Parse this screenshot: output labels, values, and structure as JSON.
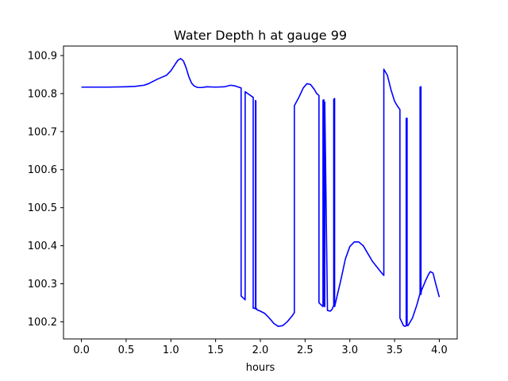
{
  "chart_data": {
    "type": "line",
    "title": "Water Depth h at gauge 99",
    "xlabel": "hours",
    "ylabel": "",
    "xlim": [
      -0.2,
      4.2
    ],
    "ylim": [
      100.155,
      100.925
    ],
    "x_ticks": [
      0.0,
      0.5,
      1.0,
      1.5,
      2.0,
      2.5,
      3.0,
      3.5,
      4.0
    ],
    "x_tick_labels": [
      "0.0",
      "0.5",
      "1.0",
      "1.5",
      "2.0",
      "2.5",
      "3.0",
      "3.5",
      "4.0"
    ],
    "y_ticks": [
      100.2,
      100.3,
      100.4,
      100.5,
      100.6,
      100.7,
      100.8,
      100.9
    ],
    "y_tick_labels": [
      "100.2",
      "100.3",
      "100.4",
      "100.5",
      "100.6",
      "100.7",
      "100.8",
      "100.9"
    ],
    "grid": false,
    "series": [
      {
        "color": "#0000ff",
        "x": [
          0.0,
          0.3,
          0.5,
          0.6,
          0.7,
          0.75,
          0.8,
          0.85,
          0.9,
          0.95,
          1.0,
          1.05,
          1.08,
          1.11,
          1.14,
          1.17,
          1.2,
          1.23,
          1.26,
          1.3,
          1.35,
          1.4,
          1.5,
          1.6,
          1.67,
          1.72,
          1.77,
          1.785,
          1.785,
          1.83,
          1.83,
          1.92,
          1.92,
          1.93,
          1.94,
          1.945,
          1.945,
          1.95,
          1.95,
          1.96,
          1.96,
          2.0,
          2.05,
          2.1,
          2.15,
          2.2,
          2.25,
          2.3,
          2.35,
          2.38,
          2.38,
          2.43,
          2.48,
          2.52,
          2.56,
          2.6,
          2.63,
          2.655,
          2.655,
          2.7,
          2.7,
          2.71,
          2.71,
          2.72,
          2.72,
          2.75,
          2.78,
          2.8,
          2.82,
          2.82,
          2.83,
          2.83,
          2.85,
          2.9,
          2.95,
          3.0,
          3.05,
          3.1,
          3.15,
          3.2,
          3.25,
          3.3,
          3.35,
          3.38,
          3.38,
          3.42,
          3.46,
          3.5,
          3.53,
          3.56,
          3.56,
          3.6,
          3.62,
          3.63,
          3.63,
          3.64,
          3.64,
          3.65,
          3.7,
          3.75,
          3.785,
          3.785,
          3.795,
          3.795,
          3.8,
          3.85,
          3.88,
          3.9,
          3.93,
          3.96,
          4.0
        ],
        "y": [
          100.817,
          100.817,
          100.818,
          100.819,
          100.822,
          100.826,
          100.832,
          100.838,
          100.843,
          100.848,
          100.86,
          100.878,
          100.888,
          100.892,
          100.886,
          100.868,
          100.845,
          100.828,
          100.82,
          100.816,
          100.816,
          100.818,
          100.817,
          100.818,
          100.822,
          100.82,
          100.816,
          100.815,
          100.268,
          100.258,
          100.805,
          100.79,
          100.236,
          100.236,
          100.235,
          100.234,
          100.782,
          100.78,
          100.236,
          100.234,
          100.232,
          100.228,
          100.222,
          100.21,
          100.196,
          100.188,
          100.19,
          100.2,
          100.214,
          100.224,
          100.768,
          100.79,
          100.815,
          100.826,
          100.824,
          100.812,
          100.8,
          100.795,
          100.25,
          100.24,
          100.782,
          100.784,
          100.245,
          100.24,
          100.778,
          100.23,
          100.228,
          100.232,
          100.243,
          100.785,
          100.787,
          100.24,
          100.26,
          100.31,
          100.365,
          100.398,
          100.41,
          100.41,
          100.4,
          100.38,
          100.36,
          100.345,
          100.33,
          100.322,
          100.864,
          100.848,
          100.81,
          100.78,
          100.768,
          100.758,
          100.21,
          100.19,
          100.188,
          100.19,
          100.735,
          100.735,
          100.19,
          100.19,
          100.21,
          100.245,
          100.275,
          100.817,
          100.818,
          100.272,
          100.282,
          100.31,
          100.325,
          100.332,
          100.328,
          100.3,
          100.265
        ]
      }
    ]
  }
}
